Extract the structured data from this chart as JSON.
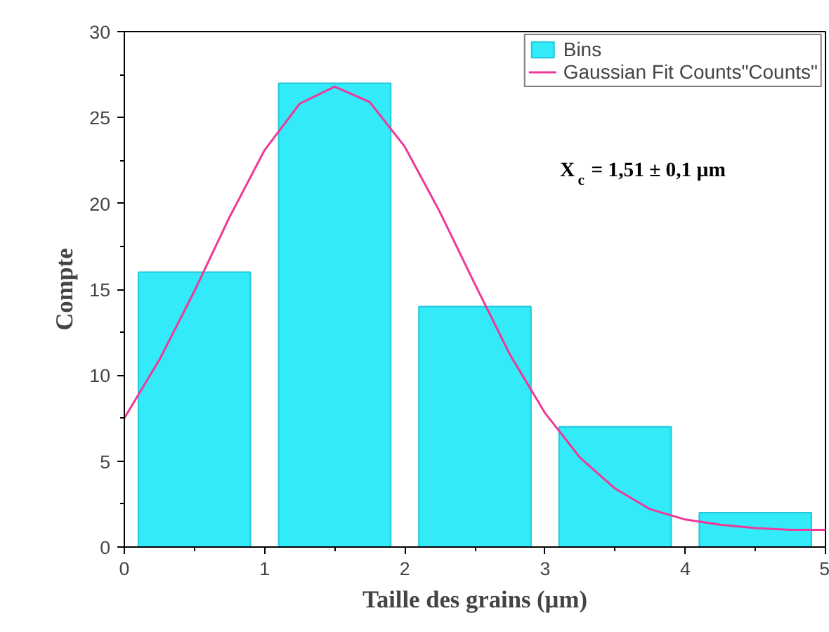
{
  "chart_data": {
    "type": "histogram",
    "xlabel": "Taille des grains (µm)",
    "ylabel": "Compte",
    "bins": [
      0,
      1,
      2,
      3,
      4,
      5
    ],
    "series": [
      {
        "name": "Bins",
        "color": "#33eaf8",
        "values": [
          16,
          27,
          14,
          7,
          2
        ]
      },
      {
        "name": "Gaussian Fit Counts\"Counts\"",
        "type": "line",
        "color": "#f0389a",
        "x": [
          0,
          0.25,
          0.5,
          0.75,
          1.0,
          1.25,
          1.5,
          1.75,
          2.0,
          2.25,
          2.5,
          2.75,
          3.0,
          3.25,
          3.5,
          3.75,
          4.0,
          4.25,
          4.5,
          4.75,
          5.0
        ],
        "values": [
          7.5,
          10.9,
          14.9,
          19.2,
          23.1,
          25.8,
          26.8,
          25.9,
          23.3,
          19.5,
          15.3,
          11.2,
          7.8,
          5.2,
          3.4,
          2.2,
          1.6,
          1.3,
          1.1,
          1.0,
          1.0
        ]
      }
    ],
    "xlim": [
      0,
      5
    ],
    "ylim": [
      0,
      30
    ],
    "xticks": [
      0,
      1,
      2,
      3,
      4,
      5
    ],
    "yticks": [
      0,
      5,
      10,
      15,
      20,
      25,
      30
    ],
    "annotations": [
      "X$_{c}$ = 1,51 ± 0,1 µm"
    ],
    "grid": false,
    "legend": "top right",
    "line_style": "solid",
    "marker": "none"
  }
}
